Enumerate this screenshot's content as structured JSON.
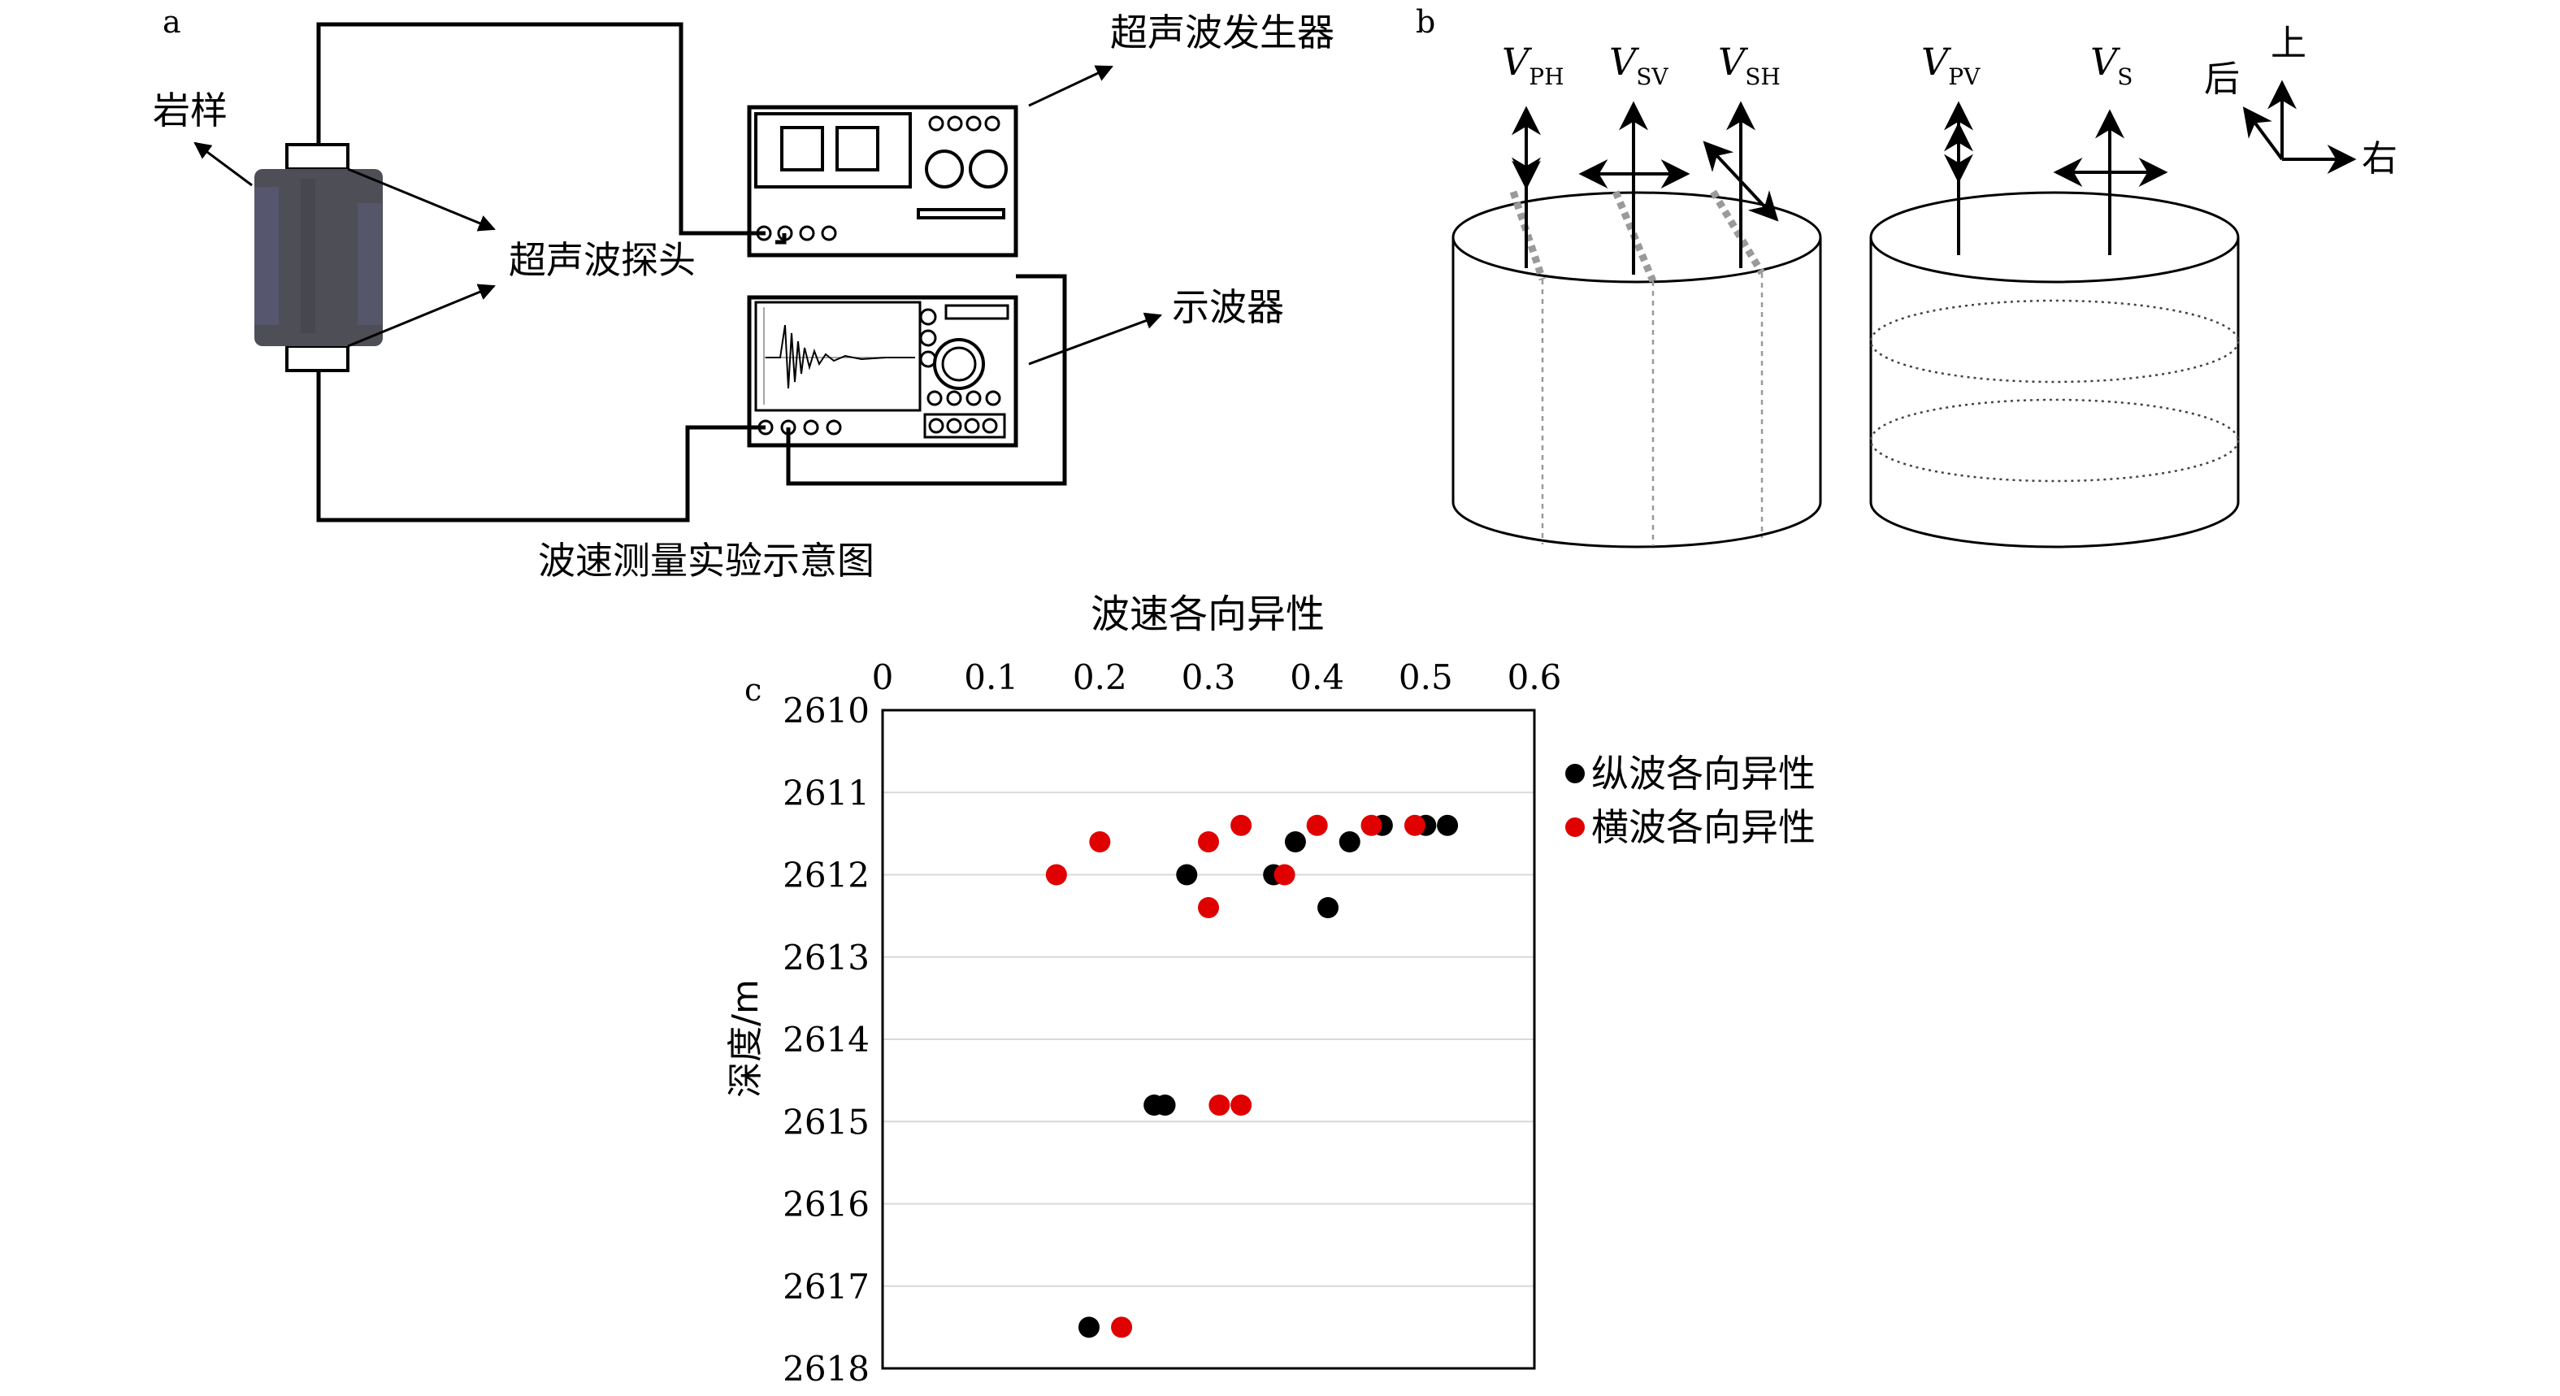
{
  "panels": {
    "a": {
      "letter": "a",
      "labels": {
        "rock_sample": "岩样",
        "probe": "超声波探头",
        "generator": "超声波发生器",
        "oscilloscope": "示波器",
        "caption": "波速测量实验示意图"
      }
    },
    "b": {
      "letter": "b",
      "waves": [
        {
          "main": "V",
          "sub": "PH"
        },
        {
          "main": "V",
          "sub": "SV"
        },
        {
          "main": "V",
          "sub": "SH"
        },
        {
          "main": "V",
          "sub": "PV"
        },
        {
          "main": "V",
          "sub": "S"
        }
      ],
      "axes": {
        "up": "上",
        "back": "后",
        "right": "右"
      }
    },
    "c": {
      "letter": "c"
    }
  },
  "chart_data": {
    "type": "scatter",
    "title": "波速各向异性",
    "ylabel": "深度/m",
    "xlim": [
      0,
      0.6
    ],
    "ylim": [
      2610,
      2618
    ],
    "y_inverted": true,
    "x_axis_position": "top",
    "x_ticks": [
      "0",
      "0.1",
      "0.2",
      "0.3",
      "0.4",
      "0.5",
      "0.6"
    ],
    "y_ticks": [
      "2610",
      "2611",
      "2612",
      "2613",
      "2614",
      "2615",
      "2616",
      "2617",
      "2618"
    ],
    "grid": "horizontal",
    "legend_position": "right",
    "series": [
      {
        "name": "纵波各向异性",
        "color": "#000000",
        "points": [
          {
            "x": 0.52,
            "y": 2611.4
          },
          {
            "x": 0.5,
            "y": 2611.4
          },
          {
            "x": 0.46,
            "y": 2611.4
          },
          {
            "x": 0.38,
            "y": 2611.6
          },
          {
            "x": 0.43,
            "y": 2611.6
          },
          {
            "x": 0.28,
            "y": 2612.0
          },
          {
            "x": 0.36,
            "y": 2612.0
          },
          {
            "x": 0.41,
            "y": 2612.4
          },
          {
            "x": 0.25,
            "y": 2614.8
          },
          {
            "x": 0.26,
            "y": 2614.8
          },
          {
            "x": 0.19,
            "y": 2617.5
          }
        ]
      },
      {
        "name": "横波各向异性",
        "color": "#e00000",
        "points": [
          {
            "x": 0.4,
            "y": 2611.4
          },
          {
            "x": 0.45,
            "y": 2611.4
          },
          {
            "x": 0.49,
            "y": 2611.4
          },
          {
            "x": 0.33,
            "y": 2611.4
          },
          {
            "x": 0.2,
            "y": 2611.6
          },
          {
            "x": 0.3,
            "y": 2611.6
          },
          {
            "x": 0.16,
            "y": 2612.0
          },
          {
            "x": 0.37,
            "y": 2612.0
          },
          {
            "x": 0.3,
            "y": 2612.4
          },
          {
            "x": 0.31,
            "y": 2614.8
          },
          {
            "x": 0.33,
            "y": 2614.8
          },
          {
            "x": 0.22,
            "y": 2617.5
          }
        ]
      }
    ]
  }
}
